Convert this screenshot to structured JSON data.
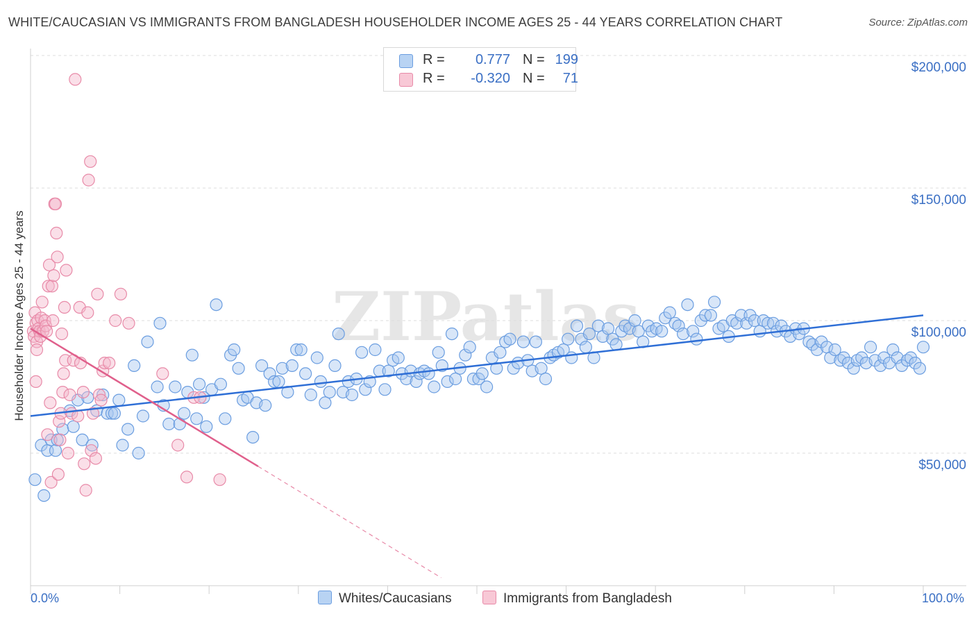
{
  "title": "WHITE/CAUCASIAN VS IMMIGRANTS FROM BANGLADESH HOUSEHOLDER INCOME AGES 25 - 44 YEARS CORRELATION CHART",
  "source": "Source: ZipAtlas.com",
  "watermark": "ZIPatlas",
  "legend": {
    "r_label": "R =",
    "n_label": "N =",
    "rows": [
      {
        "r": "0.777",
        "n": "199",
        "color": "#a8c8f0",
        "border": "#6a9de0"
      },
      {
        "r": "-0.320",
        "n": "71",
        "color": "#f5b8cb",
        "border": "#e88aa8"
      }
    ]
  },
  "bottom_legend": [
    {
      "label": "Whites/Caucasians",
      "color": "#b8d3f3",
      "border": "#6a9de0"
    },
    {
      "label": "Immigrants from Bangladesh",
      "color": "#f8c8d6",
      "border": "#e88aa8"
    }
  ],
  "chart_data": {
    "type": "scatter",
    "title": "WHITE/CAUCASIAN VS IMMIGRANTS FROM BANGLADESH HOUSEHOLDER INCOME AGES 25 - 44 YEARS CORRELATION CHART",
    "xlabel": "",
    "ylabel": "Householder Income Ages 25 - 44 years",
    "xlim": [
      0,
      100
    ],
    "ylim": [
      0,
      205000
    ],
    "x_tick_labels": [
      "0.0%",
      "100.0%"
    ],
    "y_ticks": [
      50000,
      100000,
      150000,
      200000
    ],
    "y_tick_labels": [
      "$50,000",
      "$100,000",
      "$150,000",
      "$200,000"
    ],
    "grid": true,
    "series": [
      {
        "name": "Whites/Caucasians",
        "color": "#6a9de0",
        "fill": "#a8c8f0",
        "trend": {
          "x": [
            0,
            100
          ],
          "y": [
            64000,
            102000
          ]
        },
        "points": [
          [
            0.5,
            40000
          ],
          [
            1.2,
            53000
          ],
          [
            1.5,
            34000
          ],
          [
            1.9,
            51000
          ],
          [
            2.3,
            55000
          ],
          [
            2.8,
            51000
          ],
          [
            3.0,
            55000
          ],
          [
            3.6,
            59000
          ],
          [
            4.4,
            66000
          ],
          [
            4.8,
            60000
          ],
          [
            5.3,
            70000
          ],
          [
            5.8,
            55000
          ],
          [
            6.4,
            71000
          ],
          [
            6.9,
            53000
          ],
          [
            7.4,
            66000
          ],
          [
            8.1,
            72000
          ],
          [
            8.6,
            65000
          ],
          [
            9.1,
            65000
          ],
          [
            9.4,
            65000
          ],
          [
            9.9,
            70000
          ],
          [
            10.3,
            53000
          ],
          [
            10.9,
            59000
          ],
          [
            11.6,
            83000
          ],
          [
            12.1,
            50000
          ],
          [
            12.6,
            64000
          ],
          [
            13.1,
            92000
          ],
          [
            14.2,
            75000
          ],
          [
            14.5,
            99000
          ],
          [
            14.9,
            68000
          ],
          [
            15.5,
            61000
          ],
          [
            16.2,
            75000
          ],
          [
            16.7,
            61000
          ],
          [
            17.2,
            65000
          ],
          [
            17.6,
            73000
          ],
          [
            18.1,
            87000
          ],
          [
            18.6,
            63000
          ],
          [
            18.9,
            76000
          ],
          [
            19.4,
            71000
          ],
          [
            19.7,
            60000
          ],
          [
            20.3,
            74000
          ],
          [
            20.8,
            106000
          ],
          [
            21.3,
            76000
          ],
          [
            21.8,
            63000
          ],
          [
            22.4,
            87000
          ],
          [
            22.8,
            89000
          ],
          [
            23.3,
            82000
          ],
          [
            23.8,
            70000
          ],
          [
            24.3,
            71000
          ],
          [
            24.9,
            56000
          ],
          [
            25.3,
            69000
          ],
          [
            25.9,
            83000
          ],
          [
            26.3,
            68000
          ],
          [
            26.8,
            80000
          ],
          [
            27.3,
            77000
          ],
          [
            27.8,
            77000
          ],
          [
            28.2,
            82000
          ],
          [
            28.8,
            73000
          ],
          [
            29.3,
            83000
          ],
          [
            29.8,
            89000
          ],
          [
            30.3,
            89000
          ],
          [
            30.8,
            80000
          ],
          [
            31.4,
            72000
          ],
          [
            32.1,
            86000
          ],
          [
            32.5,
            77000
          ],
          [
            33.0,
            69000
          ],
          [
            33.5,
            73000
          ],
          [
            34.1,
            83000
          ],
          [
            34.5,
            95000
          ],
          [
            35.0,
            73000
          ],
          [
            35.6,
            77000
          ],
          [
            36.0,
            72000
          ],
          [
            36.5,
            78000
          ],
          [
            37.1,
            88000
          ],
          [
            37.5,
            74000
          ],
          [
            38.0,
            77000
          ],
          [
            38.6,
            89000
          ],
          [
            39.1,
            81000
          ],
          [
            39.7,
            74000
          ],
          [
            40.1,
            81000
          ],
          [
            40.6,
            85000
          ],
          [
            41.2,
            86000
          ],
          [
            41.6,
            80000
          ],
          [
            42.1,
            78000
          ],
          [
            42.6,
            81000
          ],
          [
            43.2,
            77000
          ],
          [
            43.6,
            80000
          ],
          [
            44.1,
            81000
          ],
          [
            44.6,
            80000
          ],
          [
            45.2,
            75000
          ],
          [
            45.7,
            88000
          ],
          [
            46.1,
            83000
          ],
          [
            46.7,
            77000
          ],
          [
            47.2,
            95000
          ],
          [
            47.6,
            78000
          ],
          [
            48.1,
            82000
          ],
          [
            48.7,
            87000
          ],
          [
            49.2,
            90000
          ],
          [
            49.6,
            78000
          ],
          [
            50.2,
            78000
          ],
          [
            50.6,
            80000
          ],
          [
            51.1,
            75000
          ],
          [
            51.7,
            86000
          ],
          [
            52.2,
            82000
          ],
          [
            52.6,
            88000
          ],
          [
            53.2,
            92000
          ],
          [
            53.7,
            93000
          ],
          [
            54.1,
            82000
          ],
          [
            54.6,
            84000
          ],
          [
            55.2,
            92000
          ],
          [
            55.7,
            85000
          ],
          [
            56.2,
            81000
          ],
          [
            56.6,
            92000
          ],
          [
            57.2,
            82000
          ],
          [
            57.7,
            78000
          ],
          [
            58.2,
            86000
          ],
          [
            58.6,
            87000
          ],
          [
            59.1,
            88000
          ],
          [
            59.7,
            89000
          ],
          [
            60.2,
            93000
          ],
          [
            60.6,
            86000
          ],
          [
            61.2,
            98000
          ],
          [
            61.7,
            93000
          ],
          [
            62.2,
            90000
          ],
          [
            62.6,
            95000
          ],
          [
            63.1,
            86000
          ],
          [
            63.6,
            98000
          ],
          [
            64.1,
            94000
          ],
          [
            64.7,
            97000
          ],
          [
            65.2,
            93000
          ],
          [
            65.6,
            91000
          ],
          [
            66.2,
            96000
          ],
          [
            66.6,
            98000
          ],
          [
            67.1,
            97000
          ],
          [
            67.7,
            100000
          ],
          [
            68.1,
            96000
          ],
          [
            68.6,
            92000
          ],
          [
            69.2,
            98000
          ],
          [
            69.6,
            96000
          ],
          [
            70.1,
            97000
          ],
          [
            70.7,
            96000
          ],
          [
            71.1,
            101000
          ],
          [
            71.6,
            103000
          ],
          [
            72.2,
            99000
          ],
          [
            72.6,
            98000
          ],
          [
            73.1,
            95000
          ],
          [
            73.6,
            106000
          ],
          [
            74.2,
            96000
          ],
          [
            74.6,
            93000
          ],
          [
            75.1,
            100000
          ],
          [
            75.6,
            102000
          ],
          [
            76.2,
            102000
          ],
          [
            76.6,
            107000
          ],
          [
            77.1,
            97000
          ],
          [
            77.6,
            98000
          ],
          [
            78.2,
            94000
          ],
          [
            78.6,
            100000
          ],
          [
            79.1,
            99000
          ],
          [
            79.6,
            102000
          ],
          [
            80.2,
            99000
          ],
          [
            80.6,
            102000
          ],
          [
            81.1,
            100000
          ],
          [
            81.7,
            96000
          ],
          [
            82.1,
            100000
          ],
          [
            82.6,
            99000
          ],
          [
            83.2,
            99000
          ],
          [
            83.6,
            96000
          ],
          [
            84.1,
            98000
          ],
          [
            84.6,
            96000
          ],
          [
            85.1,
            94000
          ],
          [
            85.7,
            97000
          ],
          [
            86.1,
            95000
          ],
          [
            86.6,
            97000
          ],
          [
            87.2,
            92000
          ],
          [
            87.6,
            91000
          ],
          [
            88.1,
            89000
          ],
          [
            88.6,
            92000
          ],
          [
            89.2,
            90000
          ],
          [
            89.6,
            86000
          ],
          [
            90.1,
            89000
          ],
          [
            90.7,
            85000
          ],
          [
            91.1,
            86000
          ],
          [
            91.6,
            84000
          ],
          [
            92.2,
            82000
          ],
          [
            92.6,
            85000
          ],
          [
            93.1,
            86000
          ],
          [
            93.6,
            84000
          ],
          [
            94.1,
            90000
          ],
          [
            94.6,
            85000
          ],
          [
            95.2,
            83000
          ],
          [
            95.6,
            86000
          ],
          [
            96.2,
            84000
          ],
          [
            96.6,
            89000
          ],
          [
            97.1,
            86000
          ],
          [
            97.6,
            83000
          ],
          [
            98.2,
            85000
          ],
          [
            98.6,
            86000
          ],
          [
            99.1,
            84000
          ],
          [
            99.6,
            82000
          ],
          [
            100.0,
            90000
          ]
        ]
      },
      {
        "name": "Immigrants from Bangladesh",
        "color": "#e88aa8",
        "fill": "#f5b8cb",
        "trend": {
          "x": [
            0,
            25.5
          ],
          "y": [
            97000,
            45000
          ]
        },
        "trend_extension": {
          "x": [
            25.5,
            46
          ],
          "y": [
            45000,
            3000
          ]
        },
        "points": [
          [
            0.3,
            96000
          ],
          [
            0.4,
            94000
          ],
          [
            0.5,
            103000
          ],
          [
            0.6,
            99000
          ],
          [
            0.7,
            92000
          ],
          [
            0.8,
            100000
          ],
          [
            0.9,
            97000
          ],
          [
            1.0,
            96000
          ],
          [
            1.1,
            94000
          ],
          [
            1.2,
            101000
          ],
          [
            0.6,
            77000
          ],
          [
            0.7,
            89000
          ],
          [
            1.3,
            107000
          ],
          [
            1.4,
            96000
          ],
          [
            1.6,
            100000
          ],
          [
            1.7,
            98000
          ],
          [
            1.8,
            96000
          ],
          [
            1.9,
            57000
          ],
          [
            2.0,
            113000
          ],
          [
            2.1,
            121000
          ],
          [
            2.2,
            69000
          ],
          [
            2.3,
            39000
          ],
          [
            2.4,
            113000
          ],
          [
            2.6,
            117000
          ],
          [
            2.7,
            144000
          ],
          [
            2.8,
            144000
          ],
          [
            2.9,
            133000
          ],
          [
            3.0,
            124000
          ],
          [
            3.1,
            42000
          ],
          [
            3.2,
            62000
          ],
          [
            3.3,
            55000
          ],
          [
            3.4,
            65000
          ],
          [
            3.5,
            95000
          ],
          [
            3.6,
            73000
          ],
          [
            3.7,
            80000
          ],
          [
            3.8,
            105000
          ],
          [
            3.9,
            85000
          ],
          [
            4.0,
            119000
          ],
          [
            4.2,
            50000
          ],
          [
            4.4,
            72000
          ],
          [
            4.6,
            65000
          ],
          [
            4.8,
            85000
          ],
          [
            5.0,
            191000
          ],
          [
            5.3,
            64000
          ],
          [
            5.5,
            105000
          ],
          [
            5.6,
            84000
          ],
          [
            5.9,
            73000
          ],
          [
            6.0,
            46000
          ],
          [
            6.2,
            36000
          ],
          [
            6.4,
            103000
          ],
          [
            6.7,
            160000
          ],
          [
            6.5,
            153000
          ],
          [
            6.8,
            51000
          ],
          [
            7.0,
            65000
          ],
          [
            7.3,
            48000
          ],
          [
            7.5,
            110000
          ],
          [
            7.7,
            72000
          ],
          [
            7.9,
            70000
          ],
          [
            8.1,
            81000
          ],
          [
            8.3,
            84000
          ],
          [
            8.8,
            84000
          ],
          [
            9.5,
            100000
          ],
          [
            10.1,
            110000
          ],
          [
            11.0,
            99000
          ],
          [
            14.8,
            80000
          ],
          [
            16.5,
            53000
          ],
          [
            17.5,
            41000
          ],
          [
            18.3,
            71000
          ],
          [
            19.0,
            71000
          ],
          [
            21.2,
            40000
          ],
          [
            2.5,
            100000
          ]
        ]
      }
    ]
  }
}
